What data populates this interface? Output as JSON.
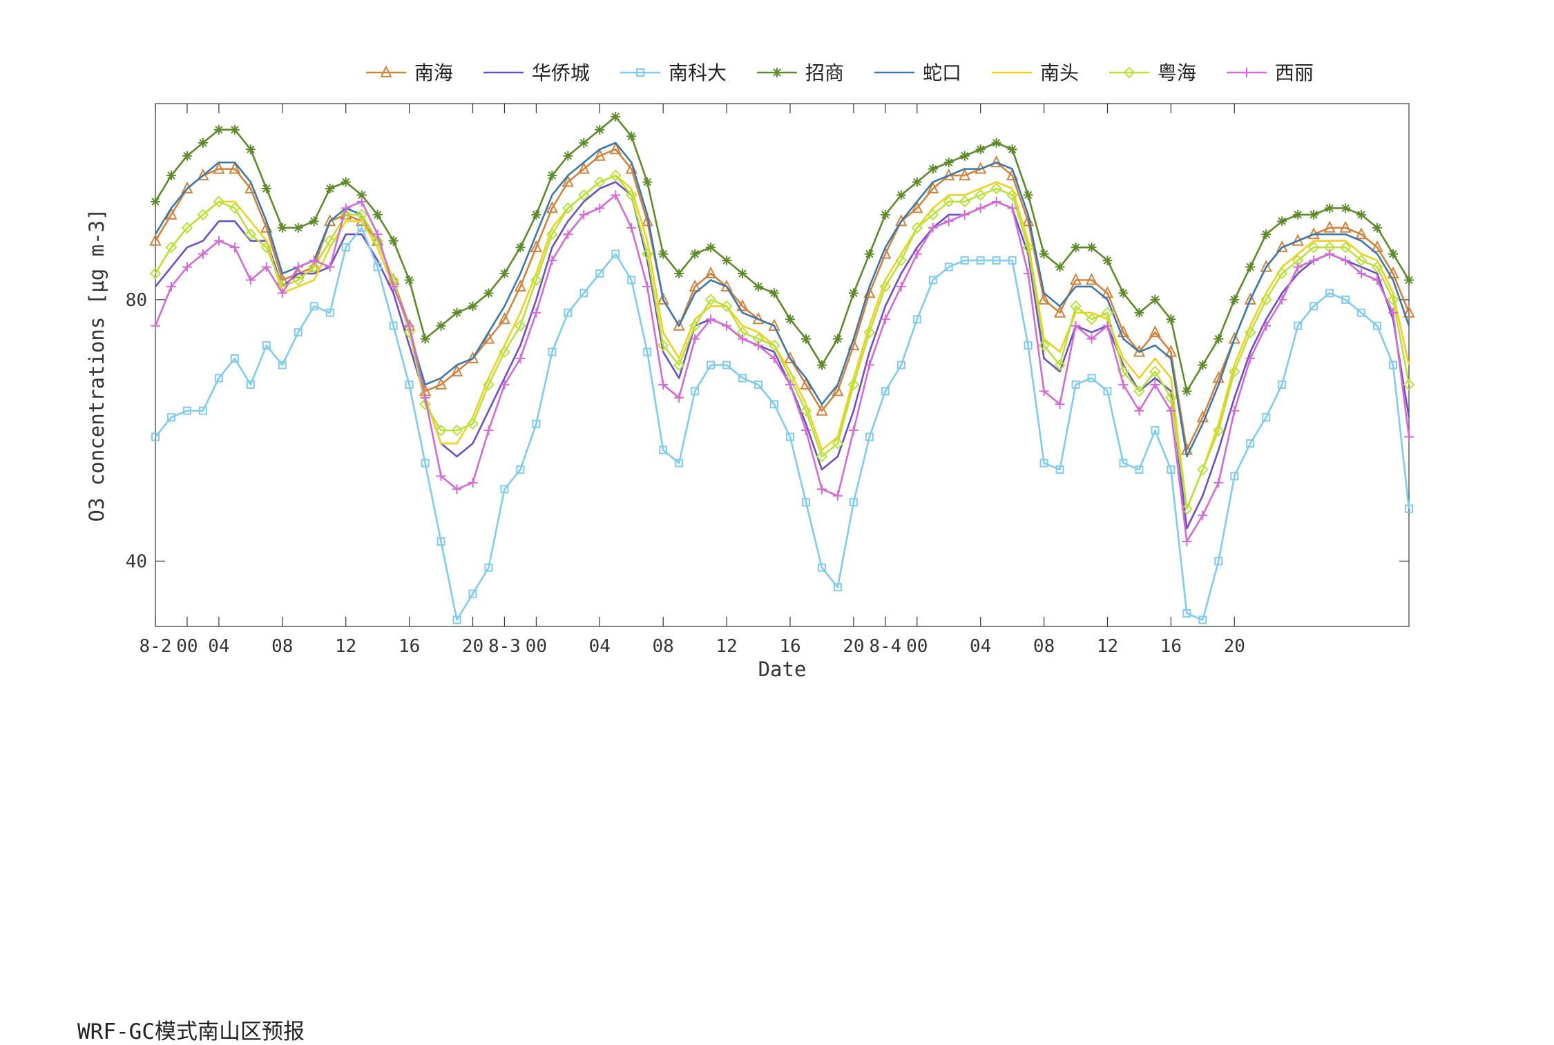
{
  "footer_text": "WRF-GC模式南山区预报",
  "chart_data": {
    "type": "line",
    "title": "",
    "xlabel": "Date",
    "ylabel": "O3 concentrations [μg m-3]",
    "ylim": [
      30,
      110
    ],
    "yticks": [
      40,
      80
    ],
    "xticks": [
      {
        "x": 0,
        "label": "8-2"
      },
      {
        "x": 2,
        "label": "00"
      },
      {
        "x": 4,
        "label": "04"
      },
      {
        "x": 8,
        "label": "08"
      },
      {
        "x": 12,
        "label": "12"
      },
      {
        "x": 16,
        "label": "16"
      },
      {
        "x": 20,
        "label": "20"
      },
      {
        "x": 22,
        "label": "8-3"
      },
      {
        "x": 24,
        "label": "00"
      },
      {
        "x": 28,
        "label": "04"
      },
      {
        "x": 32,
        "label": "08"
      },
      {
        "x": 36,
        "label": "12"
      },
      {
        "x": 40,
        "label": "16"
      },
      {
        "x": 44,
        "label": "20"
      },
      {
        "x": 46,
        "label": "8-4"
      },
      {
        "x": 48,
        "label": "00"
      },
      {
        "x": 52,
        "label": "04"
      },
      {
        "x": 56,
        "label": "08"
      },
      {
        "x": 60,
        "label": "12"
      },
      {
        "x": 64,
        "label": "16"
      },
      {
        "x": 68,
        "label": "20"
      }
    ],
    "xlim": [
      0,
      79
    ],
    "grid": false,
    "legend_position": "top",
    "series": [
      {
        "name": "南海",
        "color": "#D2823C",
        "marker": "triangle",
        "values": [
          89,
          93,
          97,
          99,
          100,
          100,
          97,
          91,
          83,
          84,
          85,
          92,
          93,
          92,
          89,
          83,
          76,
          66,
          67,
          69,
          71,
          74,
          77,
          82,
          88,
          94,
          98,
          100,
          102,
          103,
          100,
          92,
          80,
          76,
          82,
          84,
          82,
          79,
          77,
          76,
          71,
          67,
          63,
          66,
          73,
          81,
          87,
          92,
          94,
          97,
          99,
          99,
          100,
          101,
          99,
          92,
          80,
          78,
          83,
          83,
          81,
          75,
          72,
          75,
          72,
          57,
          62,
          68,
          74,
          80,
          85,
          88,
          89,
          90,
          91,
          91,
          90,
          88,
          84,
          78
        ]
      },
      {
        "name": "华侨城",
        "color": "#6A4FC8",
        "marker": "none",
        "values": [
          82,
          85,
          88,
          89,
          92,
          92,
          89,
          89,
          82,
          84,
          84,
          85,
          90,
          90,
          86,
          81,
          73,
          65,
          58,
          56,
          58,
          63,
          68,
          73,
          80,
          88,
          92,
          95,
          97,
          98,
          96,
          86,
          72,
          68,
          76,
          77,
          76,
          74,
          73,
          72,
          67,
          61,
          54,
          56,
          63,
          72,
          79,
          84,
          88,
          91,
          93,
          93,
          94,
          95,
          94,
          87,
          71,
          69,
          76,
          75,
          76,
          70,
          66,
          68,
          66,
          45,
          50,
          57,
          65,
          72,
          77,
          81,
          84,
          86,
          87,
          86,
          85,
          84,
          77,
          62
        ]
      },
      {
        "name": "南科大",
        "color": "#80CBF0",
        "marker": "square",
        "values": [
          59,
          62,
          63,
          63,
          68,
          71,
          67,
          73,
          70,
          75,
          79,
          78,
          88,
          91,
          85,
          76,
          67,
          55,
          43,
          31,
          35,
          39,
          51,
          54,
          61,
          72,
          78,
          81,
          84,
          87,
          83,
          72,
          57,
          55,
          66,
          70,
          70,
          68,
          67,
          64,
          59,
          49,
          39,
          36,
          49,
          59,
          66,
          70,
          77,
          83,
          85,
          86,
          86,
          86,
          86,
          73,
          55,
          54,
          67,
          68,
          66,
          55,
          54,
          60,
          54,
          32,
          31,
          40,
          53,
          58,
          62,
          67,
          76,
          79,
          81,
          80,
          78,
          76,
          70,
          48
        ]
      },
      {
        "name": "招商",
        "color": "#5E8A2A",
        "marker": "star",
        "values": [
          95,
          99,
          102,
          104,
          106,
          106,
          103,
          97,
          91,
          91,
          92,
          97,
          98,
          96,
          93,
          89,
          83,
          74,
          76,
          78,
          79,
          81,
          84,
          88,
          93,
          99,
          102,
          104,
          106,
          108,
          105,
          98,
          87,
          84,
          87,
          88,
          86,
          84,
          82,
          81,
          77,
          74,
          70,
          74,
          81,
          87,
          93,
          96,
          98,
          100,
          101,
          102,
          103,
          104,
          103,
          96,
          87,
          85,
          88,
          88,
          86,
          81,
          78,
          80,
          77,
          66,
          70,
          74,
          80,
          85,
          90,
          92,
          93,
          93,
          94,
          94,
          93,
          91,
          87,
          83
        ]
      },
      {
        "name": "蛇口",
        "color": "#3C78AA",
        "marker": "none",
        "values": [
          90,
          94,
          97,
          99,
          101,
          101,
          98,
          92,
          84,
          85,
          86,
          92,
          94,
          93,
          89,
          83,
          75,
          67,
          68,
          70,
          71,
          75,
          79,
          84,
          90,
          96,
          99,
          101,
          103,
          104,
          101,
          93,
          80,
          76,
          81,
          83,
          82,
          78,
          77,
          76,
          71,
          68,
          64,
          67,
          74,
          82,
          88,
          92,
          95,
          98,
          99,
          100,
          100,
          101,
          100,
          93,
          81,
          79,
          82,
          82,
          80,
          74,
          72,
          73,
          71,
          56,
          61,
          67,
          74,
          80,
          85,
          88,
          89,
          90,
          90,
          90,
          89,
          87,
          83,
          76
        ]
      },
      {
        "name": "南头",
        "color": "#F2D020",
        "marker": "none",
        "values": [
          84,
          88,
          91,
          93,
          95,
          95,
          92,
          89,
          81,
          82,
          83,
          88,
          92,
          92,
          88,
          82,
          76,
          65,
          58,
          58,
          62,
          68,
          73,
          78,
          84,
          91,
          94,
          96,
          98,
          99,
          97,
          89,
          75,
          71,
          77,
          79,
          79,
          76,
          75,
          73,
          69,
          64,
          57,
          59,
          68,
          76,
          83,
          87,
          91,
          94,
          96,
          96,
          97,
          98,
          97,
          89,
          74,
          72,
          78,
          78,
          77,
          71,
          68,
          71,
          68,
          48,
          54,
          61,
          70,
          76,
          81,
          85,
          87,
          89,
          89,
          89,
          87,
          86,
          81,
          70
        ]
      },
      {
        "name": "粤海",
        "color": "#B8E23A",
        "marker": "diamond",
        "values": [
          84,
          88,
          91,
          93,
          95,
          94,
          90,
          88,
          82,
          83,
          85,
          89,
          93,
          93,
          89,
          83,
          75,
          64,
          60,
          60,
          61,
          67,
          72,
          76,
          83,
          90,
          94,
          96,
          98,
          99,
          96,
          87,
          73,
          70,
          76,
          80,
          79,
          75,
          74,
          73,
          68,
          63,
          56,
          58,
          67,
          75,
          82,
          86,
          91,
          93,
          95,
          95,
          96,
          97,
          96,
          88,
          73,
          70,
          79,
          77,
          78,
          69,
          66,
          69,
          65,
          48,
          54,
          60,
          69,
          75,
          80,
          84,
          86,
          88,
          88,
          88,
          86,
          85,
          80,
          67
        ]
      },
      {
        "name": "西丽",
        "color": "#D46AD6",
        "marker": "plus",
        "values": [
          76,
          82,
          85,
          87,
          89,
          88,
          83,
          85,
          81,
          85,
          86,
          85,
          94,
          95,
          90,
          82,
          76,
          65,
          53,
          51,
          52,
          60,
          67,
          71,
          78,
          86,
          90,
          93,
          94,
          96,
          91,
          82,
          67,
          65,
          74,
          77,
          76,
          74,
          73,
          71,
          67,
          60,
          51,
          50,
          60,
          70,
          77,
          82,
          87,
          91,
          92,
          93,
          94,
          95,
          94,
          84,
          66,
          64,
          76,
          74,
          76,
          67,
          63,
          67,
          63,
          43,
          47,
          52,
          63,
          71,
          76,
          80,
          85,
          86,
          87,
          86,
          84,
          83,
          78,
          59
        ]
      }
    ]
  }
}
